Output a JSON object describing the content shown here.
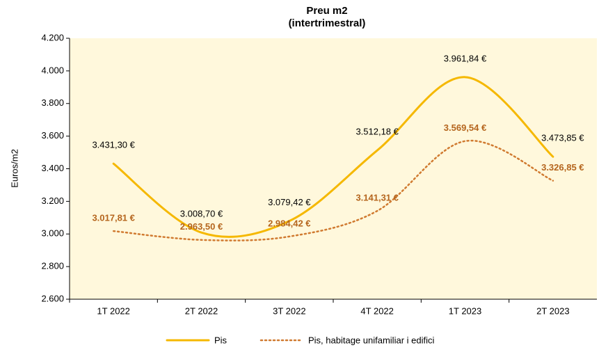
{
  "chart_data": {
    "type": "line",
    "title": "Preu m2",
    "subtitle": "(intertrimestral)",
    "y_label": "Euros/m2",
    "categories": [
      "1T 2022",
      "2T 2022",
      "3T 2022",
      "4T 2022",
      "1T 2023",
      "2T 2023"
    ],
    "series": [
      {
        "name": "Pis",
        "color": "#F5B800",
        "style": "solid",
        "values": [
          3431.3,
          3008.7,
          3079.42,
          3512.18,
          3961.84,
          3473.85
        ],
        "value_labels": [
          "3.431,30 €",
          "3.008,70 €",
          "3.079,42 €",
          "3.512,18 €",
          "3.961,84 €",
          "3.473,85 €"
        ]
      },
      {
        "name": "Pis, habitage unifamiliar i edifici",
        "color": "#D07A30",
        "style": "dotted",
        "values": [
          3017.81,
          2963.5,
          2984.42,
          3141.31,
          3569.54,
          3326.85
        ],
        "value_labels": [
          "3.017,81 €",
          "2.963,50 €",
          "2.984,42 €",
          "3.141,31 €",
          "3.569,54 €",
          "3.326,85 €"
        ]
      }
    ],
    "ylim": [
      2600,
      4200
    ],
    "yticks": [
      {
        "value": 2600,
        "label": "2.600"
      },
      {
        "value": 2800,
        "label": "2.800"
      },
      {
        "value": 3000,
        "label": "3.000"
      },
      {
        "value": 3200,
        "label": "3.200"
      },
      {
        "value": 3400,
        "label": "3.400"
      },
      {
        "value": 3600,
        "label": "3.600"
      },
      {
        "value": 3800,
        "label": "3.800"
      },
      {
        "value": 4000,
        "label": "4.000"
      },
      {
        "value": 4200,
        "label": "4.200"
      }
    ],
    "plot_background": "#FFF8DC",
    "legend": "bottom"
  }
}
